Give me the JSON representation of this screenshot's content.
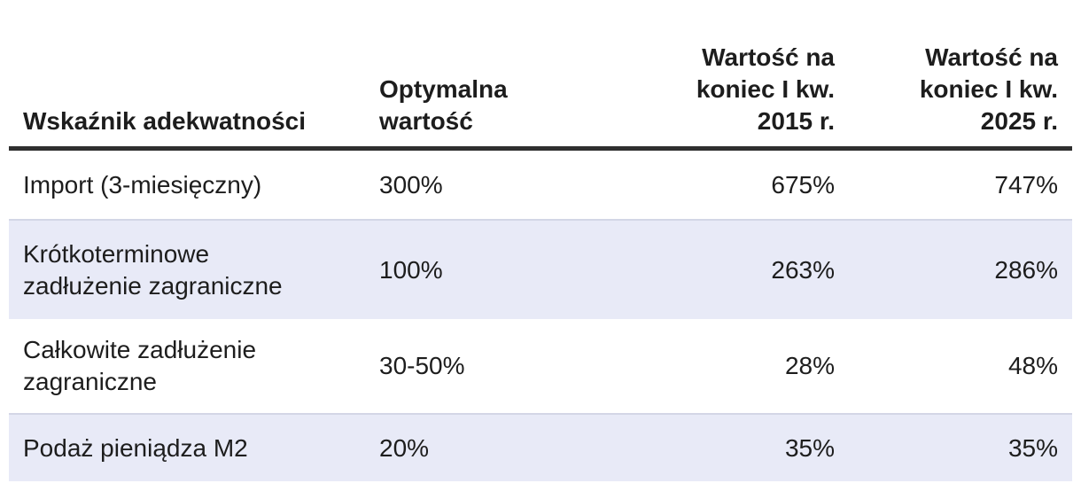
{
  "header": {
    "col1": "Wskaźnik adekwatności",
    "col2": "Optymalna\nwartość",
    "col3": "Wartość na\nkoniec I kw.\n2015 r.",
    "col4": "Wartość na\nkoniec I kw.\n2025 r."
  },
  "rows": [
    {
      "indicator": "Import (3-miesięczny)",
      "optimal": "300%",
      "v2015": "675%",
      "v2025": "747%"
    },
    {
      "indicator": "Krótkoterminowe\nzadłużenie zagraniczne",
      "optimal": "100%",
      "v2015": "263%",
      "v2025": "286%"
    },
    {
      "indicator": "Całkowite zadłużenie\nzagraniczne",
      "optimal": "30-50%",
      "v2015": "28%",
      "v2025": "48%"
    },
    {
      "indicator": "Podaż pieniądza M2",
      "optimal": "20%",
      "v2015": "35%",
      "v2025": "35%"
    }
  ],
  "colors": {
    "shaded_row_background": "#e8eaf7",
    "shaded_row_top_edge": "#d3d6e6",
    "header_rule": "#2f2f2f",
    "text": "#1d1d1d",
    "page_background": "#ffffff"
  },
  "chart_data": {
    "type": "table",
    "columns": [
      "Wskaźnik adekwatności",
      "Optymalna wartość",
      "Wartość na koniec I kw. 2015 r.",
      "Wartość na koniec I kw. 2025 r."
    ],
    "rows": [
      [
        "Import (3-miesięczny)",
        "300%",
        "675%",
        "747%"
      ],
      [
        "Krótkoterminowe zadłużenie zagraniczne",
        "100%",
        "263%",
        "286%"
      ],
      [
        "Całkowite zadłużenie zagraniczne",
        "30-50%",
        "28%",
        "48%"
      ],
      [
        "Podaż pieniądza M2",
        "20%",
        "35%",
        "35%"
      ]
    ],
    "notes": "Zacienione wiersze (2. i 4.) mają jasnofioletowe tło; wartości w kolumnach 3-4 wyrównane do prawej."
  }
}
